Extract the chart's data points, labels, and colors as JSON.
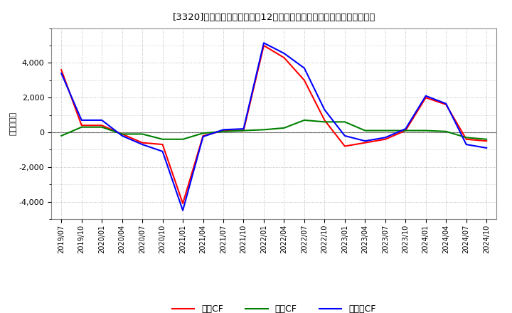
{
  "title": "[3320]　キャッシュフローの12か月移動合計の対前年同期増減額の推移",
  "ylabel": "（百万円）",
  "background_color": "#ffffff",
  "plot_bg_color": "#ffffff",
  "grid_color": "#aaaaaa",
  "x_labels": [
    "2019/07",
    "2019/10",
    "2020/01",
    "2020/04",
    "2020/07",
    "2020/10",
    "2021/01",
    "2021/04",
    "2021/07",
    "2021/10",
    "2022/01",
    "2022/04",
    "2022/07",
    "2022/10",
    "2023/01",
    "2023/04",
    "2023/07",
    "2023/10",
    "2024/01",
    "2024/04",
    "2024/07",
    "2024/10"
  ],
  "operating_cf": [
    3600,
    400,
    400,
    -100,
    -600,
    -700,
    -4100,
    -200,
    100,
    100,
    5000,
    4300,
    3000,
    700,
    -800,
    -600,
    -400,
    100,
    2000,
    1600,
    -400,
    -500
  ],
  "investing_cf": [
    -200,
    300,
    300,
    -100,
    -100,
    -400,
    -400,
    -50,
    50,
    100,
    150,
    250,
    700,
    600,
    600,
    100,
    100,
    100,
    100,
    50,
    -300,
    -400
  ],
  "free_cf": [
    3400,
    700,
    700,
    -200,
    -700,
    -1100,
    -4500,
    -250,
    150,
    200,
    5150,
    4550,
    3700,
    1300,
    -200,
    -500,
    -300,
    200,
    2100,
    1650,
    -700,
    -900
  ],
  "operating_color": "#ff0000",
  "investing_color": "#008000",
  "free_color": "#0000ff",
  "legend_labels": [
    "営業CF",
    "投資CF",
    "フリーCF"
  ],
  "ylim": [
    -5000,
    6000
  ],
  "yticks": [
    -4000,
    -2000,
    0,
    2000,
    4000
  ],
  "line_width": 1.5
}
